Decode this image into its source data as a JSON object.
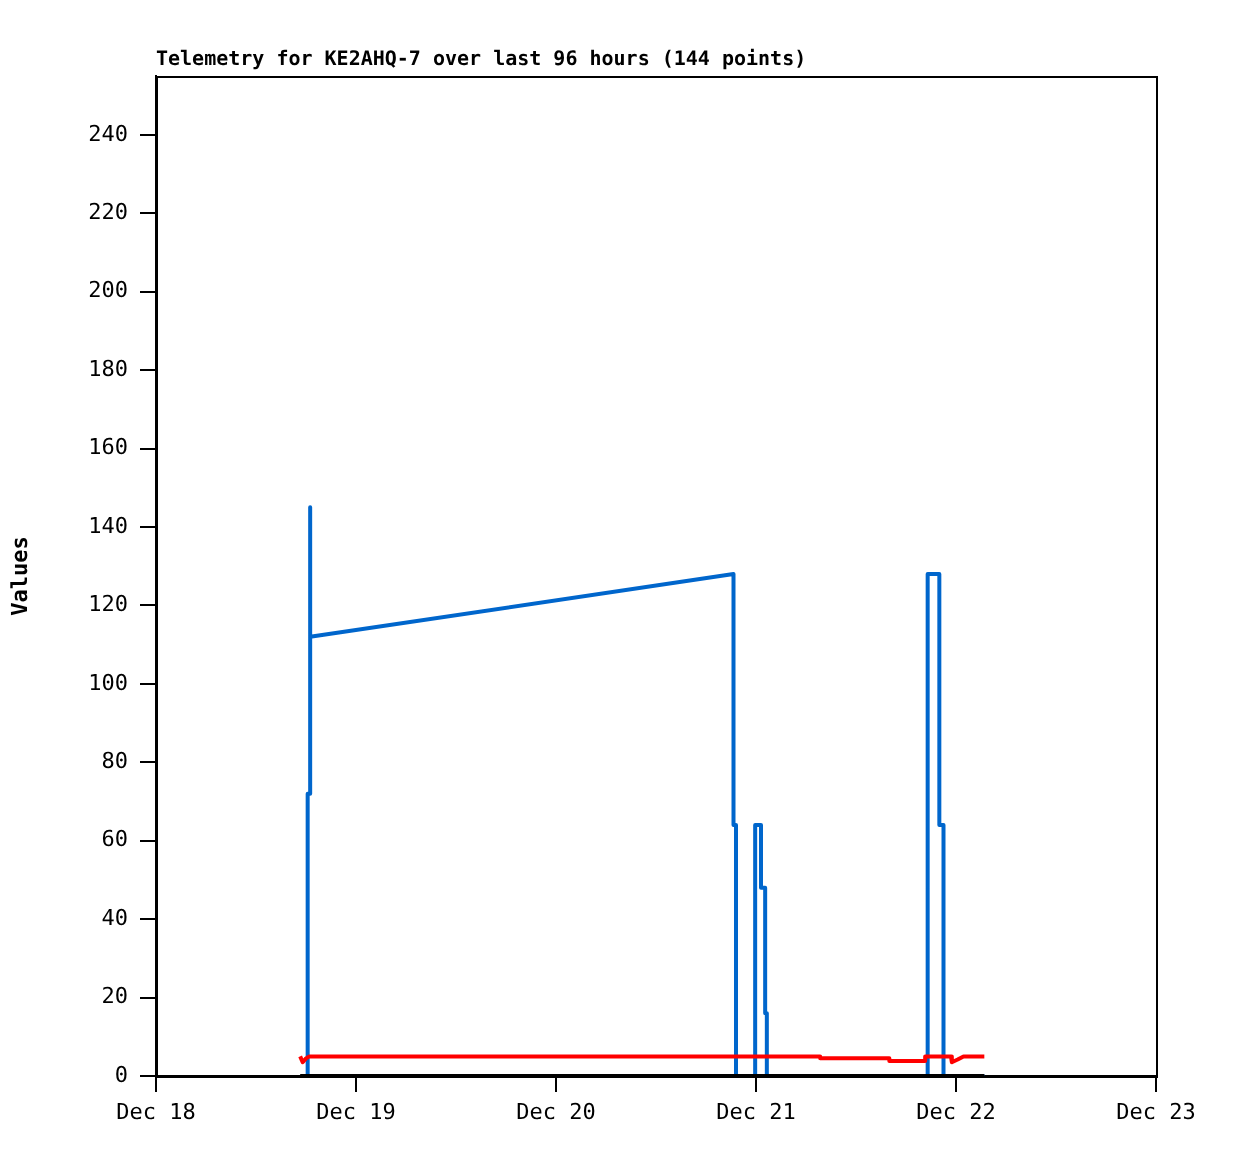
{
  "chart_data": {
    "type": "line",
    "title": "Telemetry for KE2AHQ-7 over last 96 hours (144 points)",
    "ylabel": "Values",
    "xlim": [
      "--12-18",
      "--12-23"
    ],
    "xticks": [
      {
        "value": "--12-18",
        "label": "Dec 18"
      },
      {
        "value": "--12-19",
        "label": "Dec 19"
      },
      {
        "value": "--12-20",
        "label": "Dec 20"
      },
      {
        "value": "--12-21",
        "label": "Dec 21"
      },
      {
        "value": "--12-22",
        "label": "Dec 22"
      },
      {
        "value": "--12-23",
        "label": "Dec 23"
      }
    ],
    "ylim": [
      0,
      255
    ],
    "yticks": [
      0,
      20,
      40,
      60,
      80,
      100,
      120,
      140,
      160,
      180,
      200,
      220,
      240
    ],
    "grid": false,
    "legend": false,
    "marker": "none",
    "line_style": "solid",
    "series": [
      {
        "color": "#ff0000",
        "x": [
          "--12-18T17:18",
          "--12-18T17:36",
          "--12-18T18:00",
          "--12-18T18:24",
          "--12-21T07:42",
          "--12-21T07:42",
          "--12-21T16:00",
          "--12-21T16:00",
          "--12-21T20:18",
          "--12-21T20:18",
          "--12-21T23:24",
          "--12-21T23:30",
          "--12-22T00:12",
          "--12-22T00:54",
          "--12-22T03:24"
        ],
        "values": [
          5,
          3.5,
          4.5,
          5,
          5,
          4.5,
          4.5,
          3.8,
          3.8,
          5,
          5,
          3.5,
          4.2,
          5,
          5
        ]
      },
      {
        "color": "#000000",
        "x": [
          "--12-18T17:18",
          "--12-22T03:24"
        ],
        "values": [
          0,
          0
        ]
      },
      {
        "color": "#0066cc",
        "x": [
          "--12-18T18:12",
          "--12-18T18:12",
          "--12-18T18:30",
          "--12-18T18:30",
          "--12-18T18:30",
          "--12-20T21:18",
          "--12-20T21:18",
          "--12-20T21:36",
          "--12-20T21:36",
          "--12-20T23:54",
          "--12-20T23:54",
          "--12-21T00:36",
          "--12-21T00:36",
          "--12-21T01:06",
          "--12-21T01:06",
          "--12-21T01:18",
          "--12-21T01:18",
          "--12-21T20:36",
          "--12-21T20:36",
          "--12-21T22:00",
          "--12-21T22:00",
          "--12-21T22:30",
          "--12-21T22:30",
          "--12-22T03:24"
        ],
        "values": [
          0,
          72,
          72,
          145,
          112,
          128,
          64,
          64,
          0,
          0,
          64,
          64,
          48,
          48,
          16,
          16,
          0,
          0,
          128,
          128,
          64,
          64,
          0,
          0
        ]
      }
    ]
  }
}
